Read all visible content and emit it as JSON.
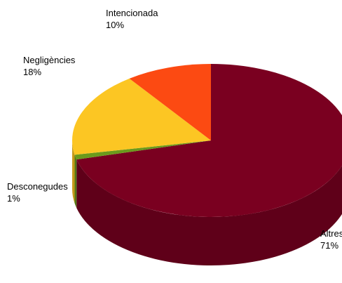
{
  "chart_data": {
    "type": "pie",
    "style": "3d",
    "slices": [
      {
        "label": "Altres",
        "value": 71,
        "value_label": "71%",
        "color": "#7a0020"
      },
      {
        "label": "Desconegudes",
        "value": 1,
        "value_label": "1%",
        "color": "#6b9a1c"
      },
      {
        "label": "Negligències",
        "value": 18,
        "value_label": "18%",
        "color": "#fcc623"
      },
      {
        "label": "Intencionada",
        "value": 10,
        "value_label": "10%",
        "color": "#fc4a12"
      }
    ]
  }
}
